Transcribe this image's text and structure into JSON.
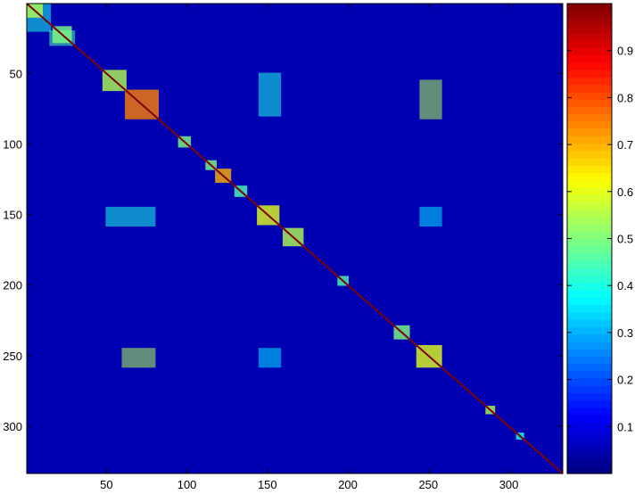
{
  "chart_data": {
    "type": "heatmap",
    "title": "",
    "xlabel": "",
    "ylabel": "",
    "matrix_size": 333,
    "xlim": [
      0.5,
      333.5
    ],
    "ylim": [
      0.5,
      333.5
    ],
    "y_direction": "reverse",
    "x_ticks": [
      50,
      100,
      150,
      200,
      250,
      300
    ],
    "x_tick_labels": [
      "50",
      "100",
      "150",
      "200",
      "250",
      "300"
    ],
    "y_ticks": [
      50,
      100,
      150,
      200,
      250,
      300
    ],
    "y_tick_labels": [
      "50",
      "100",
      "150",
      "200",
      "250",
      "300"
    ],
    "colorbar": {
      "colormap": "jet",
      "levels": 64,
      "range": [
        0,
        1
      ],
      "ticks": [
        0.1,
        0.2,
        0.3,
        0.4,
        0.5,
        0.6,
        0.7,
        0.8,
        0.9
      ],
      "tick_labels": [
        "0.1",
        "0.2",
        "0.3",
        "0.4",
        "0.5",
        "0.6",
        "0.7",
        "0.8",
        "0.9"
      ],
      "placement": "right"
    },
    "background_value": 0.05,
    "diagonal_value": 1.0,
    "diagonal_blocks": [
      {
        "start": 1,
        "end": 10,
        "value": 0.55
      },
      {
        "start": 17,
        "end": 28,
        "value": 0.5
      },
      {
        "start": 48,
        "end": 62,
        "value": 0.55
      },
      {
        "start": 62,
        "end": 82,
        "value": 0.75
      },
      {
        "start": 95,
        "end": 102,
        "value": 0.5
      },
      {
        "start": 112,
        "end": 118,
        "value": 0.5
      },
      {
        "start": 118,
        "end": 127,
        "value": 0.7
      },
      {
        "start": 130,
        "end": 137,
        "value": 0.45
      },
      {
        "start": 144,
        "end": 157,
        "value": 0.6
      },
      {
        "start": 160,
        "end": 172,
        "value": 0.55
      },
      {
        "start": 194,
        "end": 200,
        "value": 0.45
      },
      {
        "start": 229,
        "end": 238,
        "value": 0.5
      },
      {
        "start": 243,
        "end": 258,
        "value": 0.6
      },
      {
        "start": 286,
        "end": 291,
        "value": 0.55
      },
      {
        "start": 305,
        "end": 309,
        "value": 0.4
      }
    ],
    "off_diagonal_blocks": [
      {
        "rows": [
          1,
          20
        ],
        "cols": [
          1,
          15
        ],
        "value": 0.4
      },
      {
        "rows": [
          20,
          30
        ],
        "cols": [
          15,
          30
        ],
        "value": 0.45
      },
      {
        "rows": [
          55,
          82
        ],
        "cols": [
          245,
          258
        ],
        "value": 0.55
      },
      {
        "rows": [
          245,
          258
        ],
        "cols": [
          60,
          80
        ],
        "value": 0.55
      },
      {
        "rows": [
          145,
          158
        ],
        "cols": [
          50,
          80
        ],
        "value": 0.4
      },
      {
        "rows": [
          50,
          80
        ],
        "cols": [
          145,
          158
        ],
        "value": 0.4
      },
      {
        "rows": [
          245,
          258
        ],
        "cols": [
          145,
          158
        ],
        "value": 0.35
      },
      {
        "rows": [
          145,
          158
        ],
        "cols": [
          245,
          258
        ],
        "value": 0.35
      }
    ]
  }
}
